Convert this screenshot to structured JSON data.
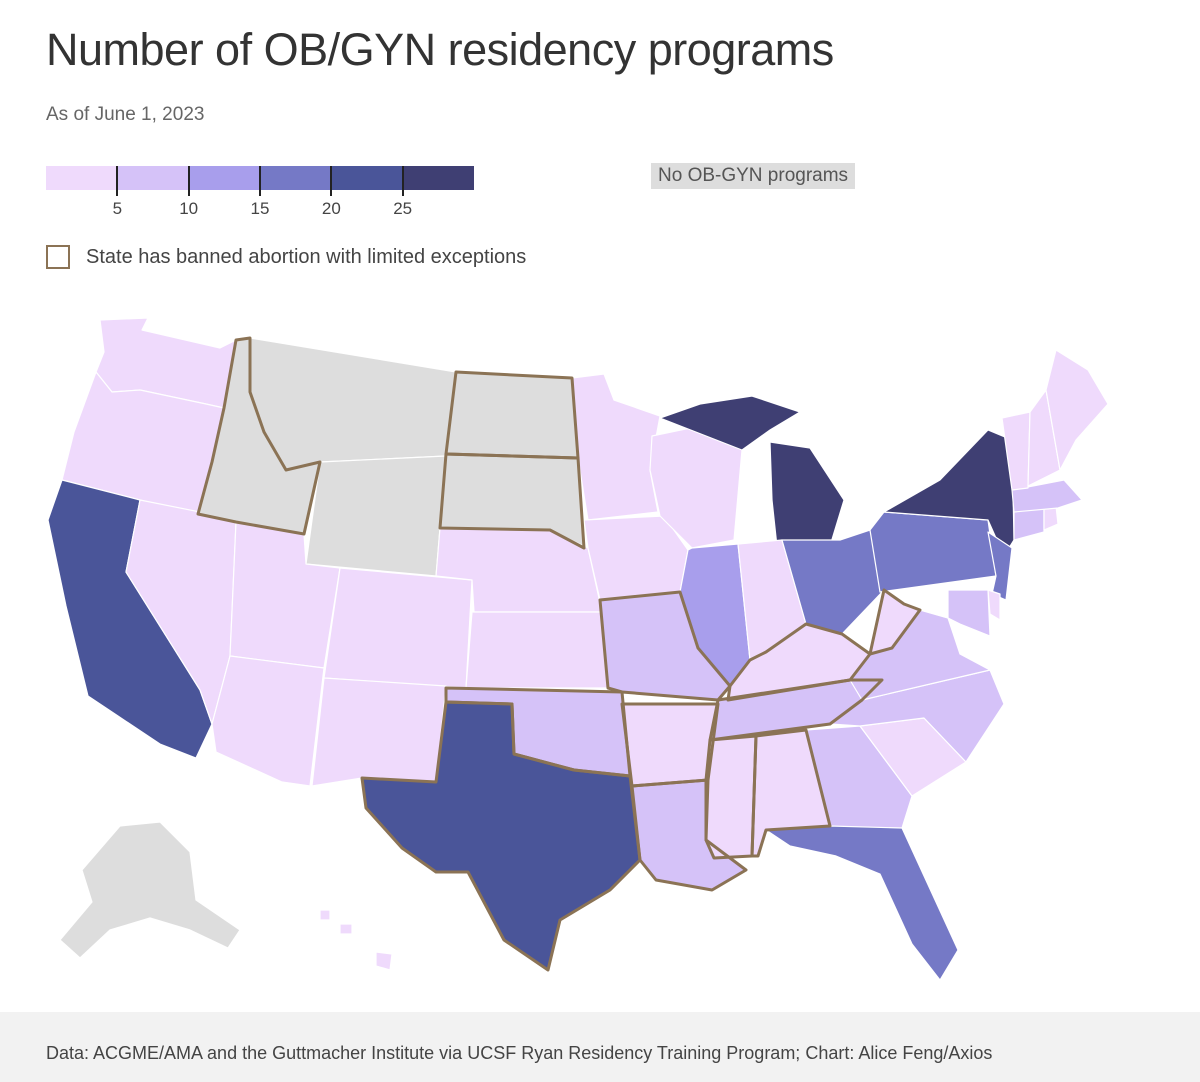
{
  "title": "Number of OB/GYN residency programs",
  "subtitle": "As of June 1, 2023",
  "legend": {
    "scale_colors": [
      "#efdafc",
      "#d5c2f8",
      "#a89eec",
      "#7579c6",
      "#4a5599",
      "#3f3f73"
    ],
    "tick_values": [
      5,
      10,
      15,
      20,
      25
    ],
    "scale_max": 30,
    "tick_labels": [
      "5",
      "10",
      "15",
      "20",
      "25"
    ],
    "no_programs_label": "No OB-GYN programs",
    "no_programs_color": "#dddddd",
    "ban_label": "State has banned abortion with limited exceptions",
    "ban_border_color": "#8b7355"
  },
  "states": [
    {
      "name": "Washington",
      "color": "#efdafc",
      "ban": false
    },
    {
      "name": "Oregon",
      "color": "#efdafc",
      "ban": false
    },
    {
      "name": "California",
      "color": "#4a5599",
      "ban": false
    },
    {
      "name": "Nevada",
      "color": "#efdafc",
      "ban": false
    },
    {
      "name": "Idaho",
      "color": "#dddddd",
      "ban": true
    },
    {
      "name": "Montana",
      "color": "#dddddd",
      "ban": false
    },
    {
      "name": "Wyoming",
      "color": "#dddddd",
      "ban": false
    },
    {
      "name": "Utah",
      "color": "#efdafc",
      "ban": false
    },
    {
      "name": "Arizona",
      "color": "#efdafc",
      "ban": false
    },
    {
      "name": "Colorado",
      "color": "#efdafc",
      "ban": false
    },
    {
      "name": "New Mexico",
      "color": "#efdafc",
      "ban": false
    },
    {
      "name": "North Dakota",
      "color": "#dddddd",
      "ban": true
    },
    {
      "name": "South Dakota",
      "color": "#dddddd",
      "ban": true
    },
    {
      "name": "Nebraska",
      "color": "#efdafc",
      "ban": false
    },
    {
      "name": "Kansas",
      "color": "#efdafc",
      "ban": false
    },
    {
      "name": "Oklahoma",
      "color": "#d5c2f8",
      "ban": true
    },
    {
      "name": "Texas",
      "color": "#4a5599",
      "ban": true
    },
    {
      "name": "Minnesota",
      "color": "#efdafc",
      "ban": false
    },
    {
      "name": "Iowa",
      "color": "#efdafc",
      "ban": false
    },
    {
      "name": "Missouri",
      "color": "#d5c2f8",
      "ban": true
    },
    {
      "name": "Arkansas",
      "color": "#efdafc",
      "ban": true
    },
    {
      "name": "Louisiana",
      "color": "#d5c2f8",
      "ban": true
    },
    {
      "name": "Wisconsin",
      "color": "#efdafc",
      "ban": false
    },
    {
      "name": "Illinois",
      "color": "#a89eec",
      "ban": false
    },
    {
      "name": "Michigan",
      "color": "#3f3f73",
      "ban": false
    },
    {
      "name": "Indiana",
      "color": "#efdafc",
      "ban": false
    },
    {
      "name": "Ohio",
      "color": "#7579c6",
      "ban": false
    },
    {
      "name": "Kentucky",
      "color": "#efdafc",
      "ban": true
    },
    {
      "name": "Tennessee",
      "color": "#d5c2f8",
      "ban": true
    },
    {
      "name": "Mississippi",
      "color": "#efdafc",
      "ban": true
    },
    {
      "name": "Alabama",
      "color": "#efdafc",
      "ban": true
    },
    {
      "name": "Georgia",
      "color": "#d5c2f8",
      "ban": false
    },
    {
      "name": "Florida",
      "color": "#7579c6",
      "ban": false
    },
    {
      "name": "South Carolina",
      "color": "#efdafc",
      "ban": false
    },
    {
      "name": "North Carolina",
      "color": "#d5c2f8",
      "ban": false
    },
    {
      "name": "Virginia",
      "color": "#d5c2f8",
      "ban": false
    },
    {
      "name": "West Virginia",
      "color": "#efdafc",
      "ban": true
    },
    {
      "name": "Pennsylvania",
      "color": "#7579c6",
      "ban": false
    },
    {
      "name": "New York",
      "color": "#3f3f73",
      "ban": false
    },
    {
      "name": "New Jersey",
      "color": "#7579c6",
      "ban": false
    },
    {
      "name": "Delaware",
      "color": "#efdafc",
      "ban": false
    },
    {
      "name": "Maryland",
      "color": "#d5c2f8",
      "ban": false
    },
    {
      "name": "Connecticut",
      "color": "#d5c2f8",
      "ban": false
    },
    {
      "name": "Rhode Island",
      "color": "#efdafc",
      "ban": false
    },
    {
      "name": "Massachusetts",
      "color": "#d5c2f8",
      "ban": false
    },
    {
      "name": "Vermont",
      "color": "#efdafc",
      "ban": false
    },
    {
      "name": "New Hampshire",
      "color": "#efdafc",
      "ban": false
    },
    {
      "name": "Maine",
      "color": "#efdafc",
      "ban": false
    },
    {
      "name": "Alaska",
      "color": "#dddddd",
      "ban": false
    },
    {
      "name": "Hawaii",
      "color": "#efdafc",
      "ban": false
    }
  ],
  "source": "Data: ACGME/AMA and the Guttmacher Institute via UCSF Ryan Residency Training Program; Chart: Alice Feng/Axios"
}
